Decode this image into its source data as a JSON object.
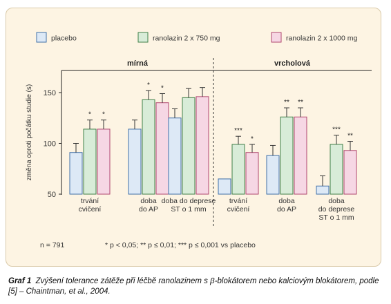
{
  "legend": [
    {
      "label": "placebo",
      "fill": "#dde9f6",
      "stroke": "#3f6fa8"
    },
    {
      "label": "ranolazin 2 x 750 mg",
      "fill": "#d8ecd8",
      "stroke": "#3f7f48"
    },
    {
      "label": "ranolazin 2 x 1000 mg",
      "fill": "#f6d7e4",
      "stroke": "#b0466f"
    }
  ],
  "footnote_n": "n = 791",
  "footnote_sig": "* p < 0,05;  ** p ≤ 0,01; *** p ≤ 0,001 vs placebo",
  "caption_label": "Graf 1",
  "caption_text": "Zvýšení tolerance zátěže při léčbě ranolazinem s β-blokátorem nebo kalciovým blokátorem, podle [5] – Chaintman, et al., 2004.",
  "chart_data": {
    "type": "bar",
    "ylabel": "změna oproti počátku studie (s)",
    "ylim": [
      50,
      165
    ],
    "yticks": [
      50,
      100,
      150
    ],
    "grid": false,
    "legend_position": "top",
    "groups": [
      {
        "title": "mírná",
        "categories": [
          {
            "label": [
              "trvání",
              "cvičení"
            ],
            "values": [
              91,
              114,
              114
            ],
            "errors": [
              9,
              9,
              9
            ],
            "sig": [
              "",
              "*",
              "*"
            ]
          },
          {
            "label": [
              "doba",
              "do AP"
            ],
            "values": [
              114,
              143,
              140
            ],
            "errors": [
              9,
              9,
              9
            ],
            "sig": [
              "",
              "*",
              "*"
            ]
          },
          {
            "label": [
              "doba do deprese",
              "ST o 1 mm"
            ],
            "values": [
              125,
              145,
              146
            ],
            "errors": [
              9,
              9,
              9
            ],
            "sig": [
              "",
              "",
              ""
            ]
          }
        ]
      },
      {
        "title": "vrcholová",
        "categories": [
          {
            "label": [
              "trvání",
              "cvičení"
            ],
            "values": [
              65,
              99,
              91
            ],
            "errors": [
              0,
              8,
              8
            ],
            "sig": [
              "",
              "***",
              "*"
            ]
          },
          {
            "label": [
              "doba",
              "do AP"
            ],
            "values": [
              88,
              126,
              126
            ],
            "errors": [
              10,
              9,
              9
            ],
            "sig": [
              "",
              "**",
              "**"
            ]
          },
          {
            "label": [
              "doba",
              "do deprese",
              "ST o 1 mm"
            ],
            "values": [
              58,
              99,
              93
            ],
            "errors": [
              10,
              9,
              9
            ],
            "sig": [
              "",
              "***",
              "**"
            ]
          }
        ]
      }
    ],
    "series": [
      {
        "name": "placebo"
      },
      {
        "name": "ranolazin 2 x 750 mg"
      },
      {
        "name": "ranolazin 2 x 1000 mg"
      }
    ]
  }
}
